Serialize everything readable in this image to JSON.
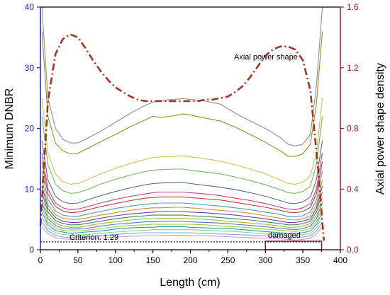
{
  "chart_data": {
    "type": "line",
    "xlabel": "Length (cm)",
    "ylabel_left": "Minimum DNBR",
    "ylabel_right": "Axial power shape density",
    "xlim": [
      0,
      400
    ],
    "ylim_left": [
      0,
      40
    ],
    "ylim_right": [
      0,
      1.6
    ],
    "x_ticks": [
      "0",
      "50",
      "100",
      "150",
      "200",
      "250",
      "300",
      "350",
      "400"
    ],
    "y_left_ticks": [
      "0",
      "10",
      "20",
      "30",
      "40"
    ],
    "y_right_ticks": [
      "0.0",
      "0.4",
      "0.8",
      "1.2",
      "1.6"
    ],
    "grid": false,
    "colors": {
      "left_axis": "#1f1fd0",
      "right_axis": "#a01f1f",
      "power_shape": "#a8321e",
      "criterion": "#1f1fd0",
      "damaged_box": "#8b1a1a"
    },
    "axial_power_shape": {
      "name": "Axial power shape",
      "axis": "right",
      "x": [
        0,
        10,
        20,
        30,
        40,
        50,
        60,
        70,
        80,
        90,
        100,
        110,
        120,
        130,
        140,
        150,
        160,
        170,
        180,
        190,
        200,
        210,
        220,
        230,
        240,
        250,
        260,
        270,
        280,
        290,
        300,
        310,
        320,
        330,
        340,
        350,
        360,
        370,
        378
      ],
      "y": [
        0.16,
        0.98,
        1.29,
        1.39,
        1.42,
        1.4,
        1.33,
        1.25,
        1.18,
        1.12,
        1.07,
        1.04,
        1.01,
        0.99,
        0.98,
        0.98,
        0.98,
        0.98,
        0.98,
        0.98,
        0.98,
        0.98,
        0.99,
        0.99,
        1.0,
        1.01,
        1.04,
        1.08,
        1.14,
        1.21,
        1.28,
        1.32,
        1.34,
        1.34,
        1.32,
        1.25,
        1.05,
        0.55,
        0.06
      ]
    },
    "criterion": {
      "label": "Criterion: 1.29",
      "value": 1.29,
      "xmax": 375
    },
    "damaged_region": {
      "label": "damaged",
      "x": [
        300,
        375
      ],
      "y": [
        0,
        1.29
      ]
    },
    "dnbr_curves": {
      "x": [
        2,
        10,
        20,
        30,
        40,
        50,
        60,
        80,
        100,
        120,
        140,
        150,
        160,
        180,
        190,
        200,
        220,
        240,
        260,
        280,
        300,
        320,
        330,
        340,
        350,
        360,
        368,
        376
      ],
      "series": [
        {
          "color": "#909090",
          "values": [
            40,
            25,
            20,
            18.2,
            17.6,
            17.6,
            18.2,
            19.5,
            21,
            22.5,
            23.8,
            24.3,
            24.6,
            24.8,
            24.9,
            24.8,
            24.5,
            24,
            22.5,
            21.2,
            20,
            18.5,
            17.4,
            17.1,
            17.4,
            19,
            27,
            40
          ]
        },
        {
          "color": "#9b8f1b",
          "values": [
            36,
            22,
            17.6,
            16.3,
            15.8,
            15.9,
            16.5,
            17.8,
            19,
            20.3,
            21.4,
            22,
            21.8,
            22.1,
            22.4,
            22.2,
            21.7,
            21.2,
            20.2,
            19,
            17.7,
            16.3,
            15.4,
            15.4,
            15.8,
            17.4,
            24,
            36
          ]
        },
        {
          "color": "#c8c850",
          "values": [
            25,
            16,
            12.5,
            11.2,
            10.8,
            10.9,
            11.4,
            12.5,
            13.4,
            14.2,
            14.9,
            15.2,
            15.3,
            15.4,
            15.5,
            15.3,
            15,
            14.6,
            14,
            13.3,
            12.5,
            11.5,
            10.9,
            10.8,
            11.2,
            12.2,
            16,
            25
          ]
        },
        {
          "color": "#6bbf59",
          "values": [
            22,
            14,
            10.8,
            9.7,
            9.3,
            9.4,
            9.8,
            10.8,
            11.6,
            12.3,
            12.9,
            13.1,
            13.2,
            13.3,
            13.3,
            13.1,
            12.8,
            12.5,
            12,
            11.4,
            10.7,
            9.9,
            9.4,
            9.3,
            9.6,
            10.5,
            14,
            22
          ]
        },
        {
          "color": "#5e6e7a",
          "values": [
            18,
            11.5,
            8.8,
            7.9,
            7.6,
            7.7,
            8.1,
            8.9,
            9.6,
            10.2,
            10.7,
            10.9,
            11,
            11.1,
            11.1,
            10.9,
            10.6,
            10.3,
            9.9,
            9.4,
            8.8,
            8.1,
            7.7,
            7.6,
            7.9,
            8.7,
            11.5,
            18
          ]
        },
        {
          "color": "#d23a8f",
          "values": [
            16,
            10,
            7.7,
            6.9,
            6.6,
            6.7,
            7,
            7.7,
            8.3,
            8.8,
            9.2,
            9.4,
            9.5,
            9.5,
            9.5,
            9.4,
            9.2,
            8.9,
            8.5,
            8.1,
            7.6,
            7,
            6.7,
            6.6,
            6.9,
            7.6,
            10,
            16
          ]
        },
        {
          "color": "#c23b2b",
          "values": [
            14.5,
            9.2,
            7.1,
            6.4,
            6.1,
            6.2,
            6.5,
            7.1,
            7.6,
            8.1,
            8.5,
            8.6,
            8.7,
            8.7,
            8.7,
            8.6,
            8.4,
            8.2,
            7.8,
            7.4,
            7,
            6.5,
            6.2,
            6.1,
            6.3,
            7,
            9.2,
            14.5
          ]
        },
        {
          "color": "#3fa5c0",
          "values": [
            13,
            8.3,
            6.4,
            5.7,
            5.5,
            5.5,
            5.8,
            6.3,
            6.8,
            7.2,
            7.5,
            7.6,
            7.7,
            7.7,
            7.7,
            7.6,
            7.4,
            7.2,
            6.9,
            6.6,
            6.2,
            5.8,
            5.5,
            5.4,
            5.6,
            6.2,
            8.2,
            13
          ]
        },
        {
          "color": "#e08a2a",
          "values": [
            11.5,
            7.4,
            5.8,
            5.2,
            5,
            5,
            5.2,
            5.7,
            6.1,
            6.5,
            6.8,
            6.9,
            6.9,
            7,
            7,
            6.9,
            6.7,
            6.5,
            6.3,
            6,
            5.6,
            5.2,
            5,
            4.9,
            5.1,
            5.6,
            7.4,
            11.5
          ]
        },
        {
          "color": "#6a3fb0",
          "values": [
            10.5,
            6.8,
            5.3,
            4.7,
            4.5,
            4.5,
            4.7,
            5.2,
            5.6,
            5.9,
            6.1,
            6.2,
            6.3,
            6.3,
            6.3,
            6.2,
            6.1,
            5.9,
            5.7,
            5.4,
            5.1,
            4.7,
            4.5,
            4.5,
            4.7,
            5.1,
            6.8,
            10.5
          ]
        },
        {
          "color": "#2f8f4f",
          "values": [
            9.5,
            6.2,
            4.8,
            4.3,
            4.1,
            4.1,
            4.3,
            4.7,
            5.1,
            5.4,
            5.6,
            5.7,
            5.7,
            5.7,
            5.7,
            5.6,
            5.5,
            5.3,
            5.1,
            4.9,
            4.6,
            4.3,
            4.1,
            4.1,
            4.3,
            4.7,
            6.2,
            9.5
          ]
        },
        {
          "color": "#b0b030",
          "values": [
            8.6,
            5.6,
            4.4,
            3.9,
            3.7,
            3.7,
            3.9,
            4.3,
            4.6,
            4.9,
            5.1,
            5.1,
            5.2,
            5.2,
            5.2,
            5.1,
            5,
            4.8,
            4.6,
            4.4,
            4.2,
            3.9,
            3.7,
            3.7,
            3.9,
            4.3,
            5.6,
            8.6
          ]
        },
        {
          "color": "#4a7ad0",
          "values": [
            7.8,
            5.1,
            4,
            3.5,
            3.4,
            3.4,
            3.5,
            3.9,
            4.2,
            4.4,
            4.6,
            4.6,
            4.7,
            4.7,
            4.7,
            4.6,
            4.5,
            4.4,
            4.2,
            4,
            3.8,
            3.5,
            3.4,
            3.3,
            3.5,
            3.9,
            5.1,
            7.8
          ]
        },
        {
          "color": "#9acd32",
          "values": [
            7,
            4.6,
            3.6,
            3.2,
            3.1,
            3.1,
            3.2,
            3.5,
            3.8,
            4,
            4.1,
            4.2,
            4.2,
            4.2,
            4.2,
            4.2,
            4.1,
            3.9,
            3.8,
            3.6,
            3.4,
            3.2,
            3.1,
            3,
            3.2,
            3.5,
            4.6,
            7
          ]
        },
        {
          "color": "#20a0a0",
          "values": [
            6.2,
            4.1,
            3.2,
            2.9,
            2.7,
            2.8,
            2.9,
            3.1,
            3.4,
            3.6,
            3.7,
            3.7,
            3.8,
            3.8,
            3.8,
            3.7,
            3.6,
            3.5,
            3.4,
            3.2,
            3,
            2.8,
            2.7,
            2.7,
            2.8,
            3.1,
            4.1,
            6.2
          ]
        },
        {
          "color": "#8fd18f",
          "values": [
            5.4,
            3.6,
            2.8,
            2.5,
            2.4,
            2.4,
            2.5,
            2.7,
            2.9,
            3.1,
            3.2,
            3.3,
            3.3,
            3.3,
            3.3,
            3.3,
            3.2,
            3.1,
            3,
            2.8,
            2.6,
            2.5,
            2.4,
            2.3,
            2.5,
            2.7,
            3.6,
            5.4
          ]
        },
        {
          "color": "#7fa6e0",
          "values": [
            4.6,
            3.1,
            2.4,
            2.1,
            2,
            2.1,
            2.1,
            2.3,
            2.5,
            2.7,
            2.8,
            2.8,
            2.8,
            2.8,
            2.8,
            2.8,
            2.7,
            2.6,
            2.5,
            2.4,
            2.3,
            2.1,
            2,
            2,
            2.1,
            2.3,
            3.1,
            4.6
          ]
        },
        {
          "color": "#c0a0d8",
          "values": [
            3.8,
            2.6,
            2,
            1.8,
            1.7,
            1.7,
            1.8,
            1.9,
            2.1,
            2.2,
            2.3,
            2.3,
            2.3,
            2.4,
            2.4,
            2.3,
            2.3,
            2.2,
            2.1,
            2,
            1.9,
            1.8,
            1.7,
            1.6,
            1.7,
            1.9,
            2.6,
            3.8
          ]
        }
      ]
    }
  }
}
